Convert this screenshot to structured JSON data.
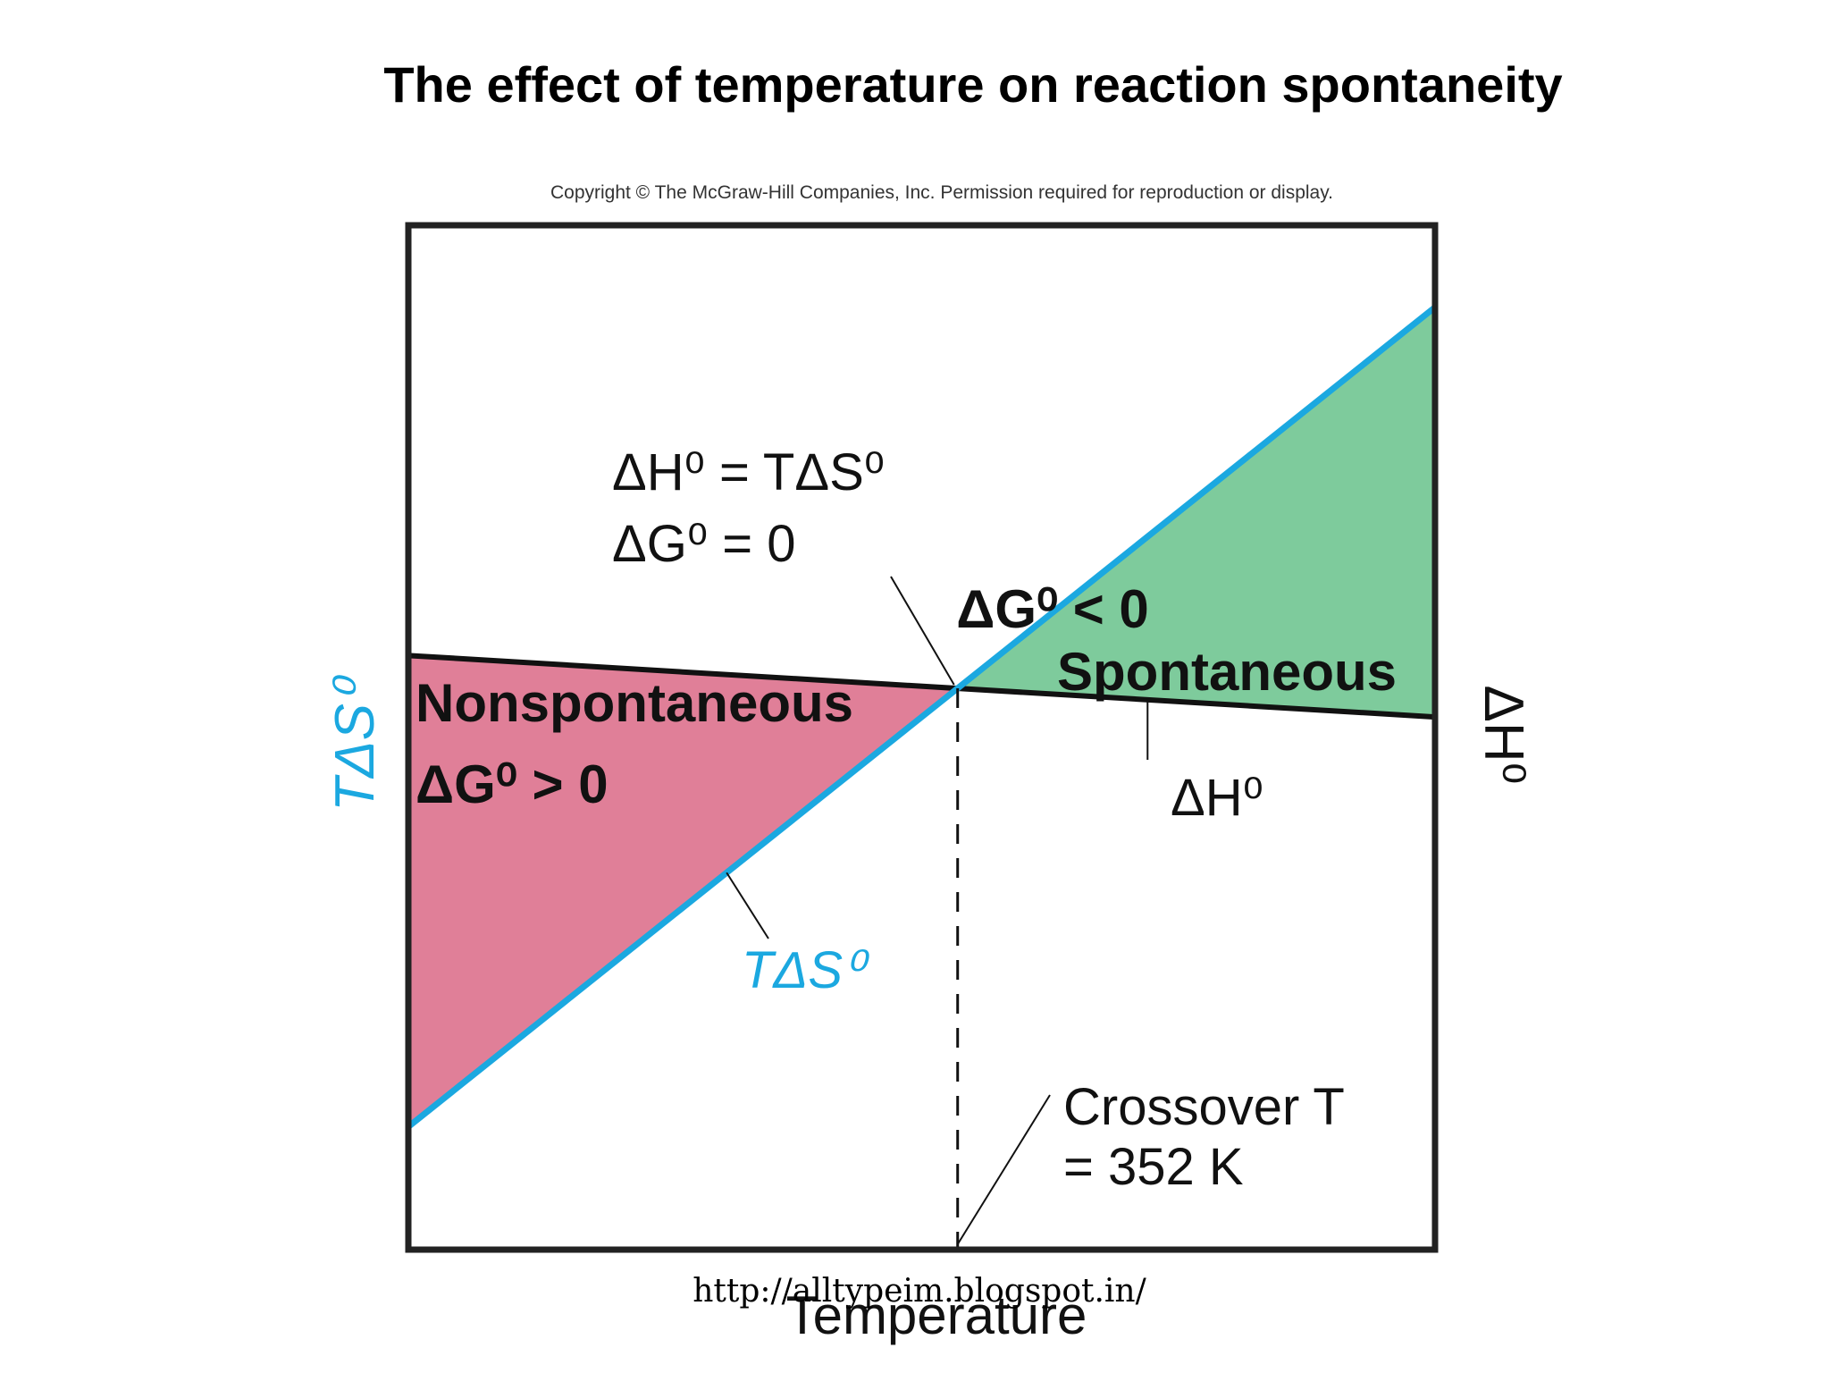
{
  "title": "The effect of temperature on reaction spontaneity",
  "copyright": "Copyright © The McGraw-Hill Companies, Inc. Permission required for reproduction or display.",
  "watermark": "http://alltypeim.blogspot.in/",
  "colors": {
    "tds_line": "#1ba8e0",
    "dh_line": "#111111",
    "nonspontaneous_fill": "#e07f98",
    "spontaneous_fill": "#7ecb9c",
    "frame": "#222222"
  },
  "chart_data": {
    "type": "line",
    "title": "",
    "xlabel": "Temperature",
    "ylabel_left": "TΔS⁰",
    "ylabel_right": "ΔH⁰",
    "xlim": [
      0,
      1
    ],
    "ylim": [
      0,
      1
    ],
    "grid": false,
    "series": [
      {
        "name": "TΔS⁰",
        "x": [
          0,
          1
        ],
        "y": [
          0.12,
          0.92
        ]
      },
      {
        "name": "ΔH⁰",
        "x": [
          0,
          1
        ],
        "y": [
          0.58,
          0.52
        ]
      }
    ],
    "crossover": {
      "x": 0.535,
      "y": 0.548
    },
    "regions": [
      {
        "label_line1": "Nonspontaneous",
        "label_line2": "ΔG⁰ > 0"
      },
      {
        "label_line1": "ΔG⁰ < 0",
        "label_line2": "Spontaneous"
      }
    ],
    "annotations": {
      "equality_line1": "ΔH⁰ = TΔS⁰",
      "equality_line2": "ΔG⁰ = 0",
      "tds_label": "TΔS⁰",
      "dh_label": "ΔH⁰",
      "crossover_line1": "Crossover T",
      "crossover_line2": "=  352 K"
    }
  }
}
